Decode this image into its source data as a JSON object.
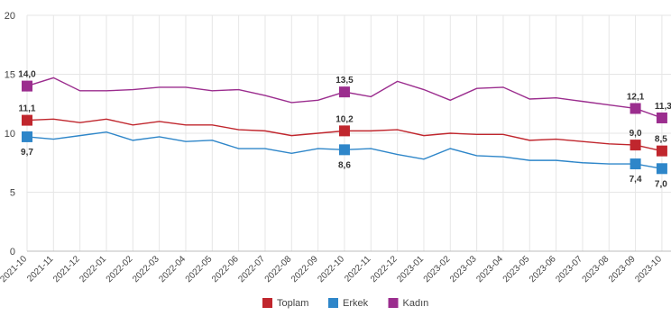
{
  "chart_data": {
    "type": "line",
    "title": "",
    "xlabel": "",
    "ylabel": "",
    "ylim": [
      0,
      20
    ],
    "yticks": [
      0,
      5,
      10,
      15,
      20
    ],
    "grid": true,
    "legend_position": "bottom-center",
    "categories": [
      "2021-10",
      "2021-11",
      "2021-12",
      "2022-01",
      "2022-02",
      "2022-03",
      "2022-04",
      "2022-05",
      "2022-06",
      "2022-07",
      "2022-08",
      "2022-09",
      "2022-10",
      "2022-11",
      "2022-12",
      "2023-01",
      "2023-02",
      "2023-03",
      "2023-04",
      "2023-05",
      "2023-06",
      "2023-07",
      "2023-08",
      "2023-09",
      "2023-10"
    ],
    "series": [
      {
        "name": "Toplam",
        "color": "#c0262d",
        "values": [
          11.1,
          11.2,
          10.9,
          11.2,
          10.7,
          11.0,
          10.7,
          10.7,
          10.3,
          10.2,
          9.8,
          10.0,
          10.2,
          10.2,
          10.3,
          9.8,
          10.0,
          9.9,
          9.9,
          9.4,
          9.5,
          9.3,
          9.1,
          9.0,
          8.5
        ],
        "labels": [
          {
            "index": 0,
            "text": "11,1"
          },
          {
            "index": 12,
            "text": "10,2"
          },
          {
            "index": 23,
            "text": "9,0"
          },
          {
            "index": 24,
            "text": "8,5"
          }
        ]
      },
      {
        "name": "Erkek",
        "color": "#2e86c9",
        "values": [
          9.7,
          9.5,
          9.8,
          10.1,
          9.4,
          9.7,
          9.3,
          9.4,
          8.7,
          8.7,
          8.3,
          8.7,
          8.6,
          8.7,
          8.2,
          7.8,
          8.7,
          8.1,
          8.0,
          7.7,
          7.7,
          7.5,
          7.4,
          7.4,
          7.0
        ],
        "labels": [
          {
            "index": 0,
            "text": "9,7"
          },
          {
            "index": 12,
            "text": "8,6"
          },
          {
            "index": 23,
            "text": "7,4"
          },
          {
            "index": 24,
            "text": "7,0"
          }
        ]
      },
      {
        "name": "Kadın",
        "color": "#9b2d8e",
        "values": [
          14.0,
          14.7,
          13.6,
          13.6,
          13.7,
          13.9,
          13.9,
          13.6,
          13.7,
          13.2,
          12.6,
          12.8,
          13.5,
          13.1,
          14.4,
          13.7,
          12.8,
          13.8,
          13.9,
          12.9,
          13.0,
          12.7,
          12.4,
          12.1,
          11.3
        ],
        "labels": [
          {
            "index": 0,
            "text": "14,0"
          },
          {
            "index": 12,
            "text": "13,5"
          },
          {
            "index": 23,
            "text": "12,1"
          },
          {
            "index": 24,
            "text": "11,3"
          }
        ]
      }
    ]
  }
}
